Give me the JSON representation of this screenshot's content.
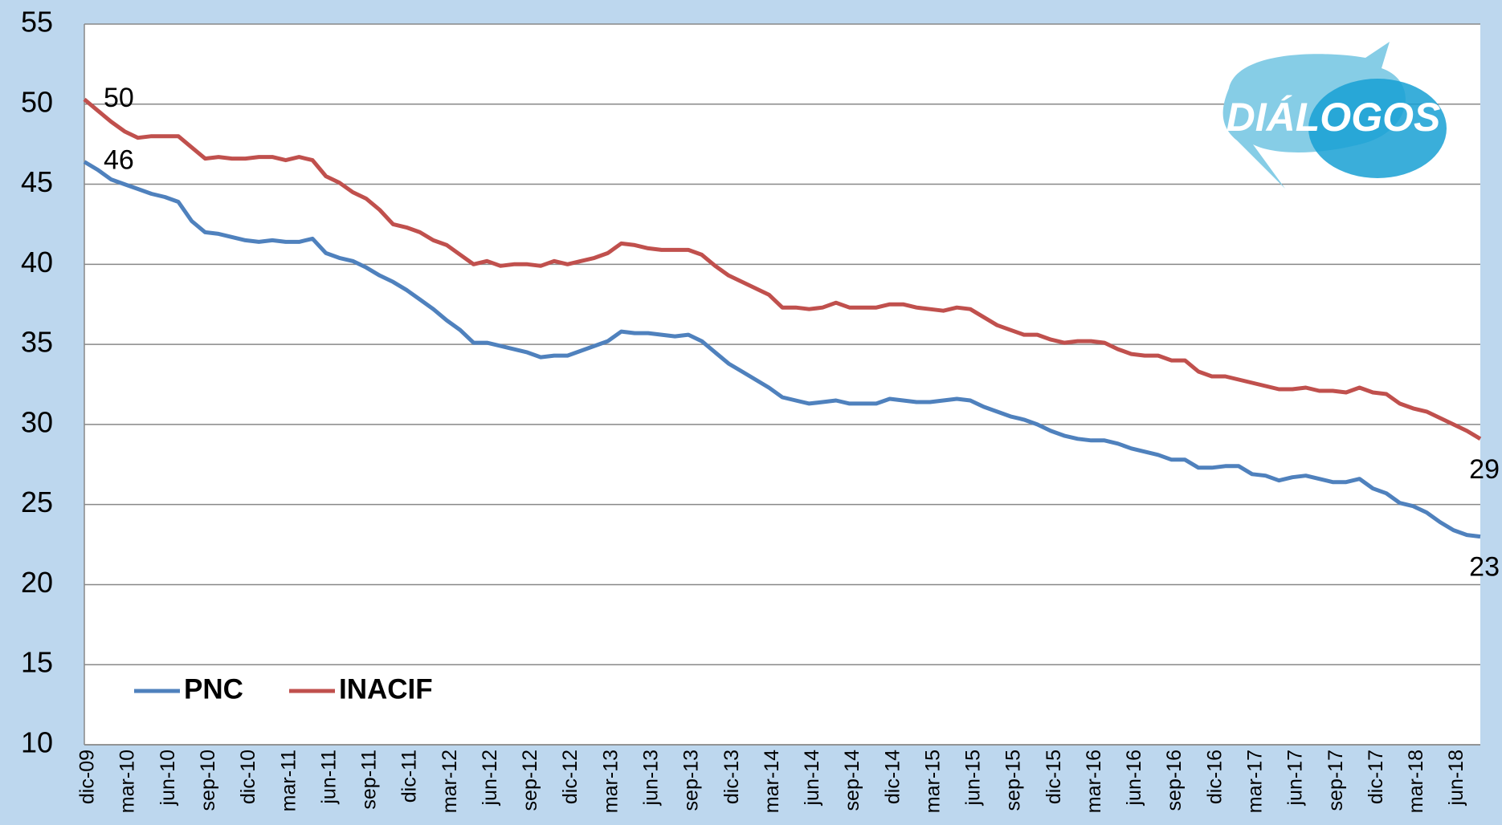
{
  "chart_data": {
    "type": "line",
    "logo": "DIÁLOGOS",
    "categories": [
      "dic-09",
      null,
      null,
      "mar-10",
      null,
      null,
      "jun-10",
      null,
      null,
      "sep-10",
      null,
      null,
      "dic-10",
      null,
      null,
      "mar-11",
      null,
      null,
      "jun-11",
      null,
      null,
      "sep-11",
      null,
      null,
      "dic-11",
      null,
      null,
      "mar-12",
      null,
      null,
      "jun-12",
      null,
      null,
      "sep-12",
      null,
      null,
      "dic-12",
      null,
      null,
      "mar-13",
      null,
      null,
      "jun-13",
      null,
      null,
      "sep-13",
      null,
      null,
      "dic-13",
      null,
      null,
      "mar-14",
      null,
      null,
      "jun-14",
      null,
      null,
      "sep-14",
      null,
      null,
      "dic-14",
      null,
      null,
      "mar-15",
      null,
      null,
      "jun-15",
      null,
      null,
      "sep-15",
      null,
      null,
      "dic-15",
      null,
      null,
      "mar-16",
      null,
      null,
      "jun-16",
      null,
      null,
      "sep-16",
      null,
      null,
      "dic-16",
      null,
      null,
      "mar-17",
      null,
      null,
      "jun-17",
      null,
      null,
      "sep-17",
      null,
      null,
      "dic-17",
      null,
      null,
      "mar-18",
      null,
      null,
      "jun-18",
      null,
      null
    ],
    "series": [
      {
        "name": "PNC",
        "color": "#4f81bd",
        "values": [
          46.4,
          45.9,
          45.3,
          45.0,
          44.7,
          44.4,
          44.2,
          43.9,
          42.7,
          42.0,
          41.9,
          41.7,
          41.5,
          41.4,
          41.5,
          41.4,
          41.4,
          41.6,
          40.7,
          40.4,
          40.2,
          39.8,
          39.3,
          38.9,
          38.4,
          37.8,
          37.2,
          36.5,
          35.9,
          35.1,
          35.1,
          34.9,
          34.7,
          34.5,
          34.2,
          34.3,
          34.3,
          34.6,
          34.9,
          35.2,
          35.8,
          35.7,
          35.7,
          35.6,
          35.5,
          35.6,
          35.2,
          34.5,
          33.8,
          33.3,
          32.8,
          32.3,
          31.7,
          31.5,
          31.3,
          31.4,
          31.5,
          31.3,
          31.3,
          31.3,
          31.6,
          31.5,
          31.4,
          31.4,
          31.5,
          31.6,
          31.5,
          31.1,
          30.8,
          30.5,
          30.3,
          30.0,
          29.6,
          29.3,
          29.1,
          29.0,
          29.0,
          28.8,
          28.5,
          28.3,
          28.1,
          27.8,
          27.8,
          27.3,
          27.3,
          27.4,
          27.4,
          26.9,
          26.8,
          26.5,
          26.7,
          26.8,
          26.6,
          26.4,
          26.4,
          26.6,
          26.0,
          25.7,
          25.1,
          24.9,
          24.5,
          23.9,
          23.4,
          23.1,
          23.0
        ],
        "value_labels": [
          "46",
          null,
          null,
          null,
          null,
          null,
          null,
          null,
          null,
          null,
          null,
          null,
          null,
          null,
          null,
          null,
          null,
          null,
          null,
          null,
          null,
          null,
          null,
          null,
          null,
          null,
          null,
          null,
          null,
          null,
          null,
          null,
          null,
          null,
          null,
          null,
          null,
          null,
          null,
          null,
          null,
          null,
          null,
          null,
          null,
          null,
          null,
          null,
          null,
          null,
          null,
          null,
          null,
          null,
          null,
          null,
          null,
          null,
          null,
          null,
          null,
          null,
          null,
          null,
          null,
          null,
          null,
          null,
          null,
          null,
          null,
          null,
          null,
          null,
          null,
          null,
          null,
          null,
          null,
          null,
          null,
          null,
          null,
          null,
          null,
          null,
          null,
          null,
          null,
          null,
          null,
          null,
          null,
          null,
          null,
          null,
          null,
          null,
          null,
          null,
          null,
          null,
          null,
          null,
          "23"
        ]
      },
      {
        "name": "INACIF",
        "color": "#c0504d",
        "values": [
          50.3,
          49.6,
          48.9,
          48.3,
          47.9,
          48.0,
          48.0,
          48.0,
          47.3,
          46.6,
          46.7,
          46.6,
          46.6,
          46.7,
          46.7,
          46.5,
          46.7,
          46.5,
          45.5,
          45.1,
          44.5,
          44.1,
          43.4,
          42.5,
          42.3,
          42.0,
          41.5,
          41.2,
          40.6,
          40.0,
          40.2,
          39.9,
          40.0,
          40.0,
          39.9,
          40.2,
          40.0,
          40.2,
          40.4,
          40.7,
          41.3,
          41.2,
          41.0,
          40.9,
          40.9,
          40.9,
          40.6,
          39.9,
          39.3,
          38.9,
          38.5,
          38.1,
          37.3,
          37.3,
          37.2,
          37.3,
          37.6,
          37.3,
          37.3,
          37.3,
          37.5,
          37.5,
          37.3,
          37.2,
          37.1,
          37.3,
          37.2,
          36.7,
          36.2,
          35.9,
          35.6,
          35.6,
          35.3,
          35.1,
          35.2,
          35.2,
          35.1,
          34.7,
          34.4,
          34.3,
          34.3,
          34.0,
          34.0,
          33.3,
          33.0,
          33.0,
          32.8,
          32.6,
          32.4,
          32.2,
          32.2,
          32.3,
          32.1,
          32.1,
          32.0,
          32.3,
          32.0,
          31.9,
          31.3,
          31.0,
          30.8,
          30.4,
          30.0,
          29.6,
          29.1
        ],
        "value_labels": [
          "50",
          null,
          null,
          null,
          null,
          null,
          null,
          null,
          null,
          null,
          null,
          null,
          null,
          null,
          null,
          null,
          null,
          null,
          null,
          null,
          null,
          null,
          null,
          null,
          null,
          null,
          null,
          null,
          null,
          null,
          null,
          null,
          null,
          null,
          null,
          null,
          null,
          null,
          null,
          null,
          null,
          null,
          null,
          null,
          null,
          null,
          null,
          null,
          null,
          null,
          null,
          null,
          null,
          null,
          null,
          null,
          null,
          null,
          null,
          null,
          null,
          null,
          null,
          null,
          null,
          null,
          null,
          null,
          null,
          null,
          null,
          null,
          null,
          null,
          null,
          null,
          null,
          null,
          null,
          null,
          null,
          null,
          null,
          null,
          null,
          null,
          null,
          null,
          null,
          null,
          null,
          null,
          null,
          null,
          null,
          null,
          null,
          null,
          null,
          null,
          null,
          null,
          null,
          null,
          "29"
        ]
      }
    ],
    "ylim": [
      10,
      55
    ],
    "yticks": [
      10,
      15,
      20,
      25,
      30,
      35,
      40,
      45,
      50,
      55
    ],
    "grid": true,
    "legend": "lower left"
  }
}
